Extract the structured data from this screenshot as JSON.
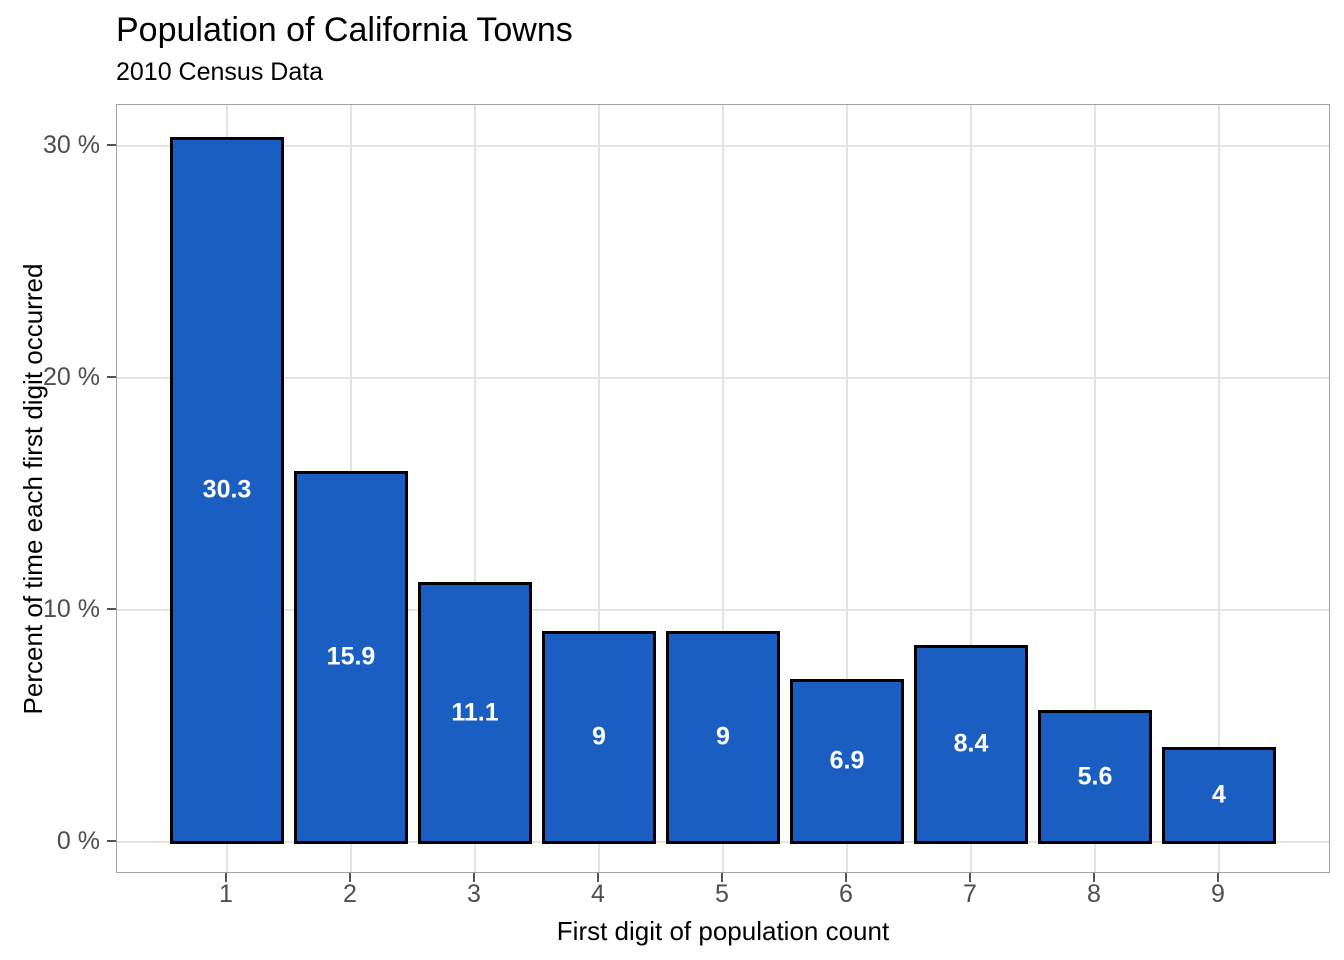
{
  "chart_data": {
    "type": "bar",
    "title": "Population of California Towns",
    "subtitle": "2010 Census Data",
    "xlabel": "First digit of population count",
    "ylabel": "Percent of time each first digit occurred",
    "categories": [
      "1",
      "2",
      "3",
      "4",
      "5",
      "6",
      "7",
      "8",
      "9"
    ],
    "values": [
      30.3,
      15.9,
      11.1,
      9,
      9,
      6.9,
      8.4,
      5.6,
      4
    ],
    "bar_labels": [
      "30.3",
      "15.9",
      "11.1",
      "9",
      "9",
      "6.9",
      "8.4",
      "5.6",
      "4"
    ],
    "yticks": [
      {
        "value": 0,
        "label": "0 %"
      },
      {
        "value": 10,
        "label": "10 %"
      },
      {
        "value": 20,
        "label": "20 %"
      },
      {
        "value": 30,
        "label": "30 %"
      }
    ],
    "ylim": [
      -1.4,
      31.75
    ],
    "grid": "major-only",
    "legend": "none",
    "colors": {
      "bar_fill": "#1A5EC2",
      "bar_border": "#000000",
      "bar_label_text": "#FFFFFF",
      "gridline": "#E4E4E4",
      "panel_border": "#A3A3A3",
      "tick_mark": "#555555",
      "tick_label": "#4D4D4D",
      "title_text": "#000000",
      "background": "#FFFFFF"
    }
  }
}
